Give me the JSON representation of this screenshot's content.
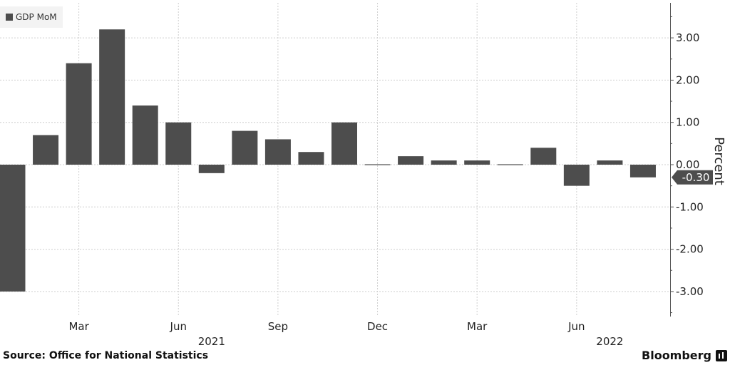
{
  "chart_data": {
    "type": "bar",
    "categories": [
      "2021-01",
      "2021-02",
      "2021-03",
      "2021-04",
      "2021-05",
      "2021-06",
      "2021-07",
      "2021-08",
      "2021-09",
      "2021-10",
      "2021-11",
      "2021-12",
      "2022-01",
      "2022-02",
      "2022-03",
      "2022-04",
      "2022-05",
      "2022-06",
      "2022-07",
      "2022-08"
    ],
    "series": [
      {
        "name": "GDP MoM",
        "values": [
          -3.0,
          0.7,
          2.4,
          3.2,
          1.4,
          1.0,
          -0.2,
          0.8,
          0.6,
          0.3,
          1.0,
          -0.02,
          0.2,
          0.1,
          0.1,
          -0.02,
          0.4,
          -0.5,
          0.1,
          -0.3
        ],
        "color": "#4d4d4d"
      }
    ],
    "ylabel": "Percent",
    "ylim": [
      -3.5,
      3.8
    ],
    "yticks": [
      3.0,
      2.0,
      1.0,
      0.0,
      -1.0,
      -2.0,
      -3.0
    ],
    "ytick_labels": [
      "3.00",
      "2.00",
      "1.00",
      "0.00",
      "-1.00",
      "-2.00",
      "-3.00"
    ],
    "xtick_labels": [
      "Mar",
      "Jun",
      "Sep",
      "Dec",
      "Mar",
      "Jun"
    ],
    "xtick_months": [
      "2021-03",
      "2021-06",
      "2021-09",
      "2021-12",
      "2022-03",
      "2022-06"
    ],
    "year_labels": [
      "2021",
      "2022"
    ],
    "year_months": [
      "2021-07",
      "2022-07"
    ],
    "last_value_label": "-0.30",
    "grid": true,
    "legend_position": "top-left",
    "axis_side": "right"
  },
  "legend": {
    "label": "GDP MoM"
  },
  "footer": {
    "source": "Source: Office for National Statistics",
    "brand": "Bloomberg"
  }
}
